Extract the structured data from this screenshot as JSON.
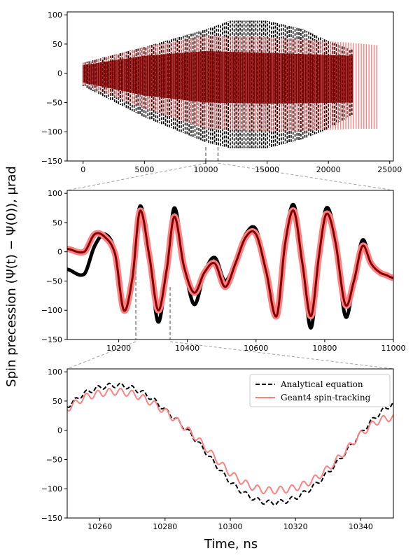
{
  "figure": {
    "ylabel": "Spin precession (Ψ(t) − Ψ(0)), μrad",
    "xlabel": "Time, ns"
  },
  "colors": {
    "analytical": "#000000",
    "geant4_light": "#ff8080",
    "geant4_dark": "#800000",
    "zoom_marker": "#a0a0a0"
  },
  "chart_data": [
    {
      "type": "line",
      "panel": "full-run",
      "xlim": [
        -1300,
        25300
      ],
      "ylim": [
        -150,
        105
      ],
      "xticks": [
        0,
        5000,
        10000,
        15000,
        20000,
        25000
      ],
      "xtick_labels": [
        "0",
        "5000",
        "10000",
        "15000",
        "20000",
        "25000"
      ],
      "yticks": [
        -150,
        -100,
        -50,
        0,
        50,
        100
      ],
      "ytick_labels": [
        "−150",
        "−100",
        "−50",
        "0",
        "50",
        "100"
      ],
      "zoom_region": [
        10000,
        11000
      ],
      "series": [
        {
          "key": "analytical",
          "style": "dashed",
          "x_range": [
            0,
            22000
          ],
          "envelope": {
            "t": [
              0,
              5000,
              10000,
              12000,
              15000,
              18000,
              20000,
              22000
            ],
            "upper": [
              18,
              45,
              75,
              90,
              90,
              75,
              55,
              40
            ],
            "lower": [
              -22,
              -75,
              -118,
              -128,
              -128,
              -112,
              -95,
              -70
            ]
          }
        },
        {
          "key": "geant4_light",
          "style": "solid",
          "x_range": [
            0,
            24000
          ],
          "envelope": {
            "t": [
              0,
              5000,
              10000,
              15000,
              20000,
              22000,
              24000
            ],
            "upper": [
              18,
              45,
              65,
              62,
              55,
              52,
              48
            ],
            "lower": [
              -20,
              -60,
              -95,
              -100,
              -97,
              -95,
              -95
            ]
          }
        }
      ]
    },
    {
      "type": "line",
      "panel": "zoom-1",
      "xlim": [
        10050,
        11000
      ],
      "ylim": [
        -150,
        105
      ],
      "xticks": [
        10200,
        10400,
        10600,
        10800,
        11000
      ],
      "xtick_labels": [
        "10200",
        "10400",
        "10600",
        "10800",
        "11000"
      ],
      "yticks": [
        -150,
        -100,
        -50,
        0,
        50,
        100
      ],
      "ytick_labels": [
        "−150",
        "−100",
        "−50",
        "0",
        "50",
        "100"
      ],
      "zoom_region": [
        10250,
        10350
      ],
      "series": [
        {
          "key": "analytical",
          "style": "solid",
          "x": [
            10050,
            10100,
            10130,
            10160,
            10190,
            10215,
            10240,
            10262,
            10290,
            10315,
            10340,
            10362,
            10390,
            10420,
            10450,
            10480,
            10510,
            10540,
            10570,
            10600,
            10630,
            10660,
            10685,
            10710,
            10735,
            10760,
            10785,
            10805,
            10830,
            10860,
            10885,
            10910,
            10935,
            10960,
            10980,
            11000
          ],
          "y": [
            -30,
            -38,
            10,
            30,
            0,
            -95,
            -40,
            78,
            -10,
            -120,
            -30,
            75,
            -20,
            -90,
            -35,
            -10,
            -50,
            -15,
            30,
            38,
            -35,
            -110,
            20,
            80,
            -20,
            -130,
            0,
            75,
            25,
            -110,
            -50,
            20,
            -20,
            -35,
            -40,
            -45
          ]
        },
        {
          "key": "geant4",
          "style": "solid",
          "x": [
            10050,
            10100,
            10130,
            10160,
            10190,
            10215,
            10240,
            10262,
            10290,
            10315,
            10340,
            10362,
            10390,
            10420,
            10450,
            10480,
            10510,
            10540,
            10570,
            10600,
            10630,
            10660,
            10685,
            10710,
            10735,
            10760,
            10785,
            10805,
            10830,
            10860,
            10885,
            10910,
            10935,
            10960,
            10980,
            11000
          ],
          "y": [
            5,
            0,
            30,
            25,
            -5,
            -100,
            -45,
            70,
            -10,
            -100,
            -30,
            60,
            -25,
            -70,
            -35,
            -20,
            -60,
            -20,
            25,
            30,
            -35,
            -110,
            15,
            70,
            -20,
            -110,
            0,
            65,
            20,
            -90,
            -50,
            10,
            -20,
            -35,
            -40,
            -45
          ]
        }
      ]
    },
    {
      "type": "line",
      "panel": "zoom-2",
      "xlim": [
        10250,
        10350
      ],
      "ylim": [
        -150,
        105
      ],
      "xticks": [
        10260,
        10280,
        10300,
        10320,
        10340
      ],
      "xtick_labels": [
        "10260",
        "10280",
        "10300",
        "10320",
        "10340"
      ],
      "yticks": [
        -150,
        -100,
        -50,
        0,
        50,
        100
      ],
      "ytick_labels": [
        "−150",
        "−100",
        "−50",
        "0",
        "50",
        "100"
      ],
      "legend": [
        "Analytical equation",
        "Geant4 spin-tracking"
      ],
      "series": [
        {
          "key": "analytical",
          "style": "dashed",
          "name": "Analytical equation",
          "x": [
            10250,
            10255,
            10260,
            10265,
            10270,
            10275,
            10280,
            10285,
            10290,
            10295,
            10300,
            10305,
            10310,
            10315,
            10320,
            10325,
            10330,
            10335,
            10340,
            10345,
            10350
          ],
          "y": [
            42,
            62,
            73,
            77,
            72,
            58,
            35,
            10,
            -20,
            -55,
            -88,
            -110,
            -122,
            -123,
            -115,
            -98,
            -72,
            -40,
            -5,
            25,
            45
          ]
        },
        {
          "key": "geant4_light",
          "style": "solid",
          "name": "Geant4 spin-tracking",
          "x": [
            10250,
            10255,
            10260,
            10265,
            10270,
            10275,
            10280,
            10285,
            10290,
            10295,
            10300,
            10305,
            10310,
            10315,
            10320,
            10325,
            10330,
            10335,
            10340,
            10345,
            10350
          ],
          "y": [
            38,
            55,
            63,
            66,
            62,
            50,
            32,
            10,
            -15,
            -45,
            -73,
            -92,
            -102,
            -102,
            -98,
            -86,
            -65,
            -37,
            -7,
            15,
            22
          ]
        }
      ]
    }
  ]
}
